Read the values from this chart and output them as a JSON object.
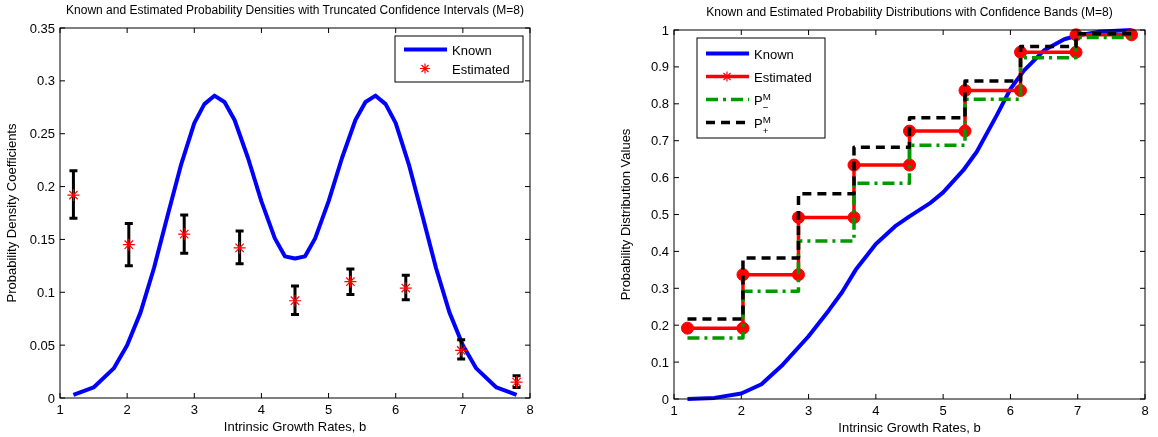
{
  "chart_data": [
    {
      "type": "line",
      "title": "Known and Estimated Probability Densities with Truncated Confidence Intervals (M=8)",
      "xlabel": "Intrinsic Growth Rates, b",
      "ylabel": "Probability Density Coefficients",
      "xlim": [
        1,
        8
      ],
      "ylim": [
        0,
        0.35
      ],
      "xticks": [
        1,
        2,
        3,
        4,
        5,
        6,
        7,
        8
      ],
      "yticks": [
        0,
        0.05,
        0.1,
        0.15,
        0.2,
        0.25,
        0.3,
        0.35
      ],
      "legend": "top right",
      "series": [
        {
          "name": "Known",
          "color": "#0000ff",
          "marker": "none",
          "line_style": "solid",
          "x": [
            1.2,
            1.5,
            1.8,
            2.0,
            2.2,
            2.4,
            2.6,
            2.8,
            3.0,
            3.15,
            3.3,
            3.45,
            3.6,
            3.8,
            4.0,
            4.2,
            4.35,
            4.5,
            4.65,
            4.8,
            5.0,
            5.2,
            5.4,
            5.55,
            5.7,
            5.85,
            6.0,
            6.2,
            6.4,
            6.6,
            6.8,
            7.0,
            7.2,
            7.5,
            7.8
          ],
          "values": [
            0.003,
            0.01,
            0.028,
            0.05,
            0.081,
            0.123,
            0.172,
            0.22,
            0.26,
            0.278,
            0.286,
            0.28,
            0.263,
            0.227,
            0.186,
            0.151,
            0.134,
            0.132,
            0.134,
            0.151,
            0.186,
            0.227,
            0.263,
            0.28,
            0.286,
            0.278,
            0.26,
            0.22,
            0.172,
            0.123,
            0.081,
            0.05,
            0.028,
            0.01,
            0.003
          ]
        },
        {
          "name": "Estimated",
          "type": "scatter",
          "color": "#ff0000",
          "marker": "cross",
          "x": [
            1.2,
            2.025,
            2.85,
            3.675,
            4.5,
            5.325,
            6.15,
            6.975,
            7.8
          ],
          "values": [
            0.192,
            0.145,
            0.155,
            0.142,
            0.092,
            0.11,
            0.104,
            0.045,
            0.015
          ],
          "errors": [
            [
              0.17,
              0.215
            ],
            [
              0.125,
              0.165
            ],
            [
              0.137,
              0.173
            ],
            [
              0.127,
              0.158
            ],
            [
              0.079,
              0.106
            ],
            [
              0.098,
              0.122
            ],
            [
              0.093,
              0.116
            ],
            [
              0.037,
              0.055
            ],
            [
              0.01,
              0.021
            ]
          ]
        }
      ]
    },
    {
      "type": "line",
      "title": "Known and Estimated Probability Distributions with Confidence Bands (M=8)",
      "xlabel": "Intrinsic Growth Rates, b",
      "ylabel": "Probability Distribution Values",
      "xlim": [
        1,
        8
      ],
      "ylim": [
        0,
        1
      ],
      "xticks": [
        1,
        2,
        3,
        4,
        5,
        6,
        7,
        8
      ],
      "yticks": [
        0,
        0.1,
        0.2,
        0.3,
        0.4,
        0.5,
        0.6,
        0.7,
        0.8,
        0.9,
        1
      ],
      "legend": "top left",
      "series": [
        {
          "name": "Known",
          "color": "#0000ff",
          "marker": "none",
          "line_style": "solid",
          "x": [
            1.2,
            1.6,
            2.0,
            2.3,
            2.6,
            3.0,
            3.3,
            3.5,
            3.7,
            4.0,
            4.3,
            4.5,
            4.8,
            5.0,
            5.3,
            5.5,
            5.8,
            6.0,
            6.2,
            6.5,
            6.8,
            7.0,
            7.3,
            7.8
          ],
          "values": [
            0,
            0.003,
            0.015,
            0.04,
            0.09,
            0.17,
            0.24,
            0.29,
            0.35,
            0.42,
            0.47,
            0.495,
            0.53,
            0.56,
            0.62,
            0.67,
            0.77,
            0.84,
            0.89,
            0.945,
            0.975,
            0.985,
            0.995,
            1
          ]
        },
        {
          "name": "Estimated",
          "color": "#ff0000",
          "marker": "circle",
          "line_style": "solid",
          "x": [
            1.2,
            2.025,
            2.025,
            2.85,
            2.85,
            3.675,
            3.675,
            4.5,
            4.5,
            5.325,
            5.325,
            6.15,
            6.15,
            6.975,
            6.975,
            7.8
          ],
          "values": [
            0.192,
            0.192,
            0.337,
            0.337,
            0.492,
            0.492,
            0.634,
            0.634,
            0.726,
            0.726,
            0.836,
            0.836,
            0.94,
            0.94,
            0.987,
            0.987
          ]
        },
        {
          "name": "P$^{M}$$_{−}$",
          "color": "#009900",
          "marker": "none",
          "line_style": "dashdot",
          "x": [
            1.2,
            2.025,
            2.025,
            2.85,
            2.85,
            3.675,
            3.675,
            4.5,
            4.5,
            5.325,
            5.325,
            6.15,
            6.15,
            6.975,
            6.975,
            7.8
          ],
          "values": [
            0.165,
            0.165,
            0.292,
            0.292,
            0.428,
            0.428,
            0.585,
            0.585,
            0.688,
            0.688,
            0.812,
            0.812,
            0.925,
            0.925,
            0.98,
            0.98
          ]
        },
        {
          "name": "P$^{M}$$_{+}$",
          "color": "#000000",
          "marker": "none",
          "line_style": "dashed",
          "x": [
            1.2,
            2.025,
            2.025,
            2.85,
            2.85,
            3.675,
            3.675,
            4.5,
            4.5,
            5.325,
            5.325,
            6.15,
            6.15,
            6.975,
            6.975,
            7.8
          ],
          "values": [
            0.217,
            0.217,
            0.382,
            0.382,
            0.556,
            0.556,
            0.682,
            0.682,
            0.762,
            0.762,
            0.862,
            0.862,
            0.955,
            0.955,
            0.99,
            0.99
          ]
        }
      ]
    }
  ]
}
